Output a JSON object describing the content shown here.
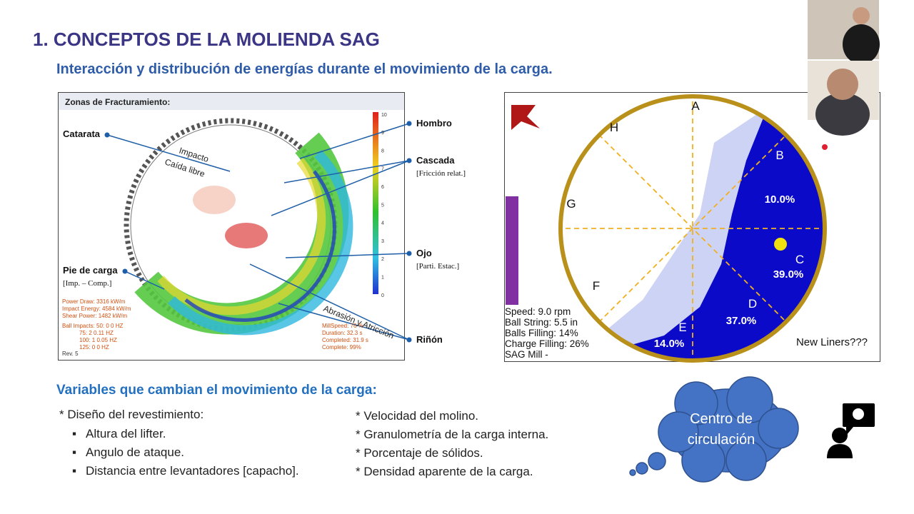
{
  "title": "1. CONCEPTOS DE LA MOLIENDA SAG",
  "subtitle": "Interacción y distribución de energías durante el movimiento de la carga.",
  "left_figure": {
    "header": "Zonas de Fracturamiento:",
    "labels": {
      "catarata": "Catarata",
      "hombro": "Hombro",
      "cascada": "Cascada",
      "cascada_note": "[Fricción relat.]",
      "ojo": "Ojo",
      "ojo_note": "[Parti. Estac.]",
      "pie": "Pie de carga",
      "pie_note": "[Imp. – Comp.]",
      "rinon": "Riñón"
    },
    "annotations": {
      "impacto": "Impacto",
      "caida": "Caída libre",
      "abrasion": "Abrasión y Atricción"
    },
    "scale": [
      10,
      9,
      8,
      7,
      6,
      5,
      4,
      3,
      2,
      1,
      0
    ],
    "stats_left": [
      "Power Draw: 3316 kW/m",
      "Impact Energy: 4584 kW/m",
      "Shear Power: 1482 kW/m"
    ],
    "impacts": [
      "Ball Impacts: 50:  0   0 HZ",
      "75:  2   0.11 HZ",
      "100:  1   0.05 HZ",
      "125:  0   0 HZ"
    ],
    "stats_right": [
      "MillSpeed: 76 %",
      "Duration: 32.3 s",
      "Completed: 31.9 s",
      "Complete: 99%"
    ],
    "rev": "Rev. 5"
  },
  "right_figure": {
    "letters": [
      "A",
      "B",
      "C",
      "D",
      "E",
      "F",
      "G",
      "H"
    ],
    "percents": [
      "10.0%",
      "39.0%",
      "37.0%",
      "14.0%"
    ],
    "info": [
      "Speed: 9.0 rpm",
      "Ball String: 5.5 in",
      "Balls Filling: 14%",
      "Charge Filling: 26%",
      "SAG Mill -"
    ],
    "note": "New Liners???"
  },
  "variables": {
    "heading": "Variables que cambian el movimiento de la carga:",
    "col1_head": "* Diseño del revestimiento:",
    "col1_items": [
      "Altura del lifter.",
      "Angulo de ataque.",
      "Distancia entre levantadores [capacho]."
    ],
    "col2": [
      "* Velocidad del molino.",
      "* Granulometría de la carga interna.",
      "* Porcentaje de sólidos.",
      "* Densidad aparente de la carga."
    ]
  },
  "cloud": [
    "Centro de",
    "circulación"
  ]
}
